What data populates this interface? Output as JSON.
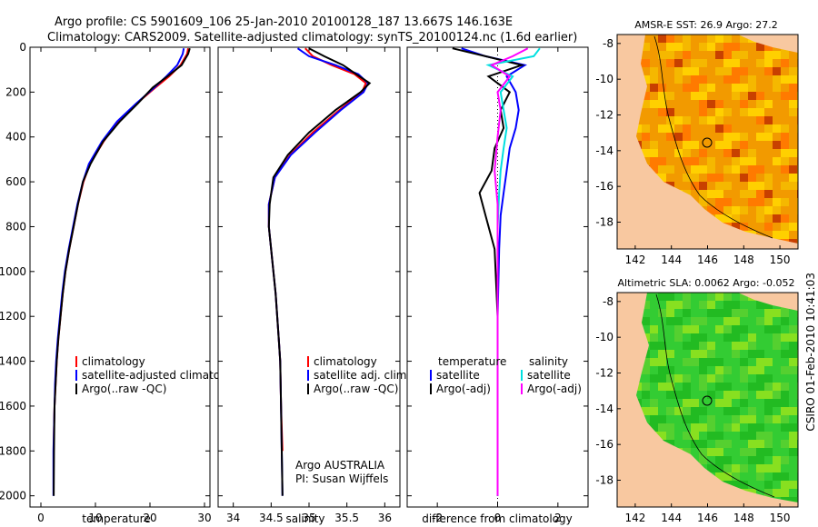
{
  "chart_data": [
    {
      "type": "line",
      "title": "Argo profile: CS 5901609_106 25-Jan-2010 20100128_187 13.667S 146.163E",
      "subtitle": "Climatology: CARS2009. Satellite-adjusted climatology: synTS_20100124.nc (1.6d earlier)",
      "xlabel": "temperature",
      "ylabel": "",
      "xlim": [
        -2,
        31
      ],
      "ylim": [
        2050,
        0
      ],
      "xticks": [
        "0",
        "10",
        "20",
        "30"
      ],
      "yticks": [
        "0",
        "200",
        "400",
        "600",
        "800",
        "1000",
        "1200",
        "1400",
        "1600",
        "1800",
        "2000"
      ],
      "legend": [
        "climatology",
        "satellite-adjusted climatology",
        "Argo(..raw -QC)"
      ],
      "series": [
        {
          "name": "climatology",
          "color": "#ff0000",
          "x": [
            27.0,
            26.8,
            25.6,
            23.5,
            21.0,
            17.6,
            14.2,
            11.5,
            9.0,
            7.8,
            6.8,
            6.0,
            5.2,
            4.5,
            4.0,
            3.6,
            3.2,
            2.9,
            2.7,
            2.5,
            2.4,
            2.35
          ],
          "y": [
            5,
            30,
            80,
            130,
            180,
            250,
            330,
            420,
            520,
            600,
            700,
            800,
            900,
            1000,
            1100,
            1200,
            1300,
            1400,
            1500,
            1600,
            1700,
            1800
          ]
        },
        {
          "name": "satellite-adjusted climatology",
          "color": "#0000ff",
          "x": [
            26.2,
            26.0,
            25.0,
            23.0,
            20.8,
            17.5,
            14.0,
            11.2,
            8.8,
            7.7,
            6.7,
            5.9,
            5.1,
            4.4,
            3.9,
            3.5,
            3.1,
            2.8,
            2.6,
            2.5,
            2.4,
            2.3,
            2.3
          ],
          "y": [
            5,
            30,
            80,
            130,
            180,
            250,
            330,
            420,
            520,
            600,
            700,
            800,
            900,
            1000,
            1100,
            1200,
            1300,
            1400,
            1500,
            1600,
            1700,
            1800,
            2000
          ]
        },
        {
          "name": "Argo(..raw -QC)",
          "color": "#000000",
          "x": [
            27.3,
            27.0,
            25.8,
            23.2,
            20.5,
            17.8,
            14.5,
            11.4,
            9.1,
            7.7,
            6.8,
            6.0,
            5.2,
            4.5,
            4.0,
            3.6,
            3.2,
            2.9,
            2.7,
            2.5,
            2.45,
            2.4,
            2.35
          ],
          "y": [
            5,
            30,
            80,
            130,
            180,
            250,
            330,
            420,
            520,
            600,
            700,
            800,
            900,
            1000,
            1100,
            1200,
            1300,
            1400,
            1500,
            1600,
            1700,
            1800,
            2000
          ]
        }
      ]
    },
    {
      "type": "line",
      "xlabel": "salinity",
      "xlim": [
        33.8,
        36.2
      ],
      "ylim": [
        2050,
        0
      ],
      "xticks": [
        "34",
        "34.5",
        "35",
        "35.5",
        "36"
      ],
      "legend": [
        "climatology",
        "satellite adj. clim.",
        "Argo(..raw -QC)"
      ],
      "annotation": [
        "Argo AUSTRALIA",
        "PI: Susan Wijffels"
      ],
      "series": [
        {
          "name": "climatology",
          "color": "#ff0000",
          "x": [
            34.95,
            35.05,
            35.3,
            35.6,
            35.75,
            35.7,
            35.4,
            35.05,
            34.75,
            34.55,
            34.47,
            34.47,
            34.5,
            34.53,
            34.56,
            34.58,
            34.6,
            34.62,
            34.63,
            34.65
          ],
          "y": [
            5,
            40,
            80,
            120,
            160,
            200,
            280,
            380,
            480,
            580,
            700,
            800,
            900,
            1000,
            1100,
            1200,
            1300,
            1400,
            1600,
            1800
          ]
        },
        {
          "name": "satellite adj. clim.",
          "color": "#0000ff",
          "x": [
            34.85,
            35.0,
            35.35,
            35.65,
            35.78,
            35.72,
            35.42,
            35.08,
            34.76,
            34.55,
            34.47,
            34.47,
            34.5,
            34.53,
            34.56,
            34.58,
            34.6,
            34.62,
            34.63,
            34.64,
            34.65
          ],
          "y": [
            5,
            40,
            80,
            120,
            160,
            200,
            280,
            380,
            480,
            580,
            700,
            800,
            900,
            1000,
            1100,
            1200,
            1300,
            1400,
            1600,
            1800,
            2000
          ]
        },
        {
          "name": "Argo(..raw -QC)",
          "color": "#000000",
          "x": [
            35.0,
            35.2,
            35.45,
            35.62,
            35.8,
            35.68,
            35.35,
            35.0,
            34.72,
            34.53,
            34.48,
            34.47,
            34.5,
            34.53,
            34.56,
            34.58,
            34.6,
            34.62,
            34.63,
            34.64,
            34.65
          ],
          "y": [
            5,
            40,
            80,
            120,
            160,
            200,
            280,
            380,
            480,
            580,
            700,
            800,
            900,
            1000,
            1100,
            1200,
            1300,
            1400,
            1600,
            1800,
            2000
          ]
        }
      ]
    },
    {
      "type": "line",
      "xlabel": "difference from climatology",
      "xlim": [
        -3,
        3
      ],
      "ylim": [
        2050,
        0
      ],
      "xticks": [
        "-2",
        "0",
        "2"
      ],
      "legend_left_title": "temperature",
      "legend_right_title": "salinity",
      "legend_left": [
        "satellite",
        "Argo(-adj)"
      ],
      "legend_right": [
        "satellite",
        "Argo(-adj)"
      ],
      "series": [
        {
          "name": "temperature satellite",
          "color": "#0000ff",
          "x": [
            -1.2,
            -0.4,
            0.9,
            0.3,
            0.6,
            0.7,
            0.6,
            0.4,
            0.3,
            0.2,
            0.1,
            0.05,
            0.0,
            0.0,
            0.0
          ],
          "y": [
            5,
            40,
            80,
            130,
            200,
            280,
            360,
            450,
            550,
            650,
            750,
            900,
            1200,
            1600,
            2000
          ]
        },
        {
          "name": "temperature Argo(-adj)",
          "color": "#000000",
          "x": [
            -1.5,
            -0.4,
            0.8,
            -0.3,
            0.4,
            0.1,
            0.2,
            -0.1,
            -0.2,
            -0.6,
            -0.4,
            -0.1,
            0.0,
            0.0,
            0.0
          ],
          "y": [
            5,
            40,
            80,
            130,
            200,
            280,
            360,
            450,
            550,
            650,
            750,
            900,
            1200,
            1600,
            2000
          ]
        },
        {
          "name": "salinity satellite",
          "color": "#00e0e0",
          "x": [
            1.4,
            1.2,
            -0.3,
            0.5,
            0.1,
            0.2,
            0.3,
            0.2,
            0.1,
            0.05,
            0.0,
            0.0,
            0.0,
            0.0
          ],
          "y": [
            5,
            40,
            80,
            130,
            200,
            280,
            360,
            450,
            550,
            650,
            800,
            1200,
            1600,
            2000
          ]
        },
        {
          "name": "salinity Argo(-adj)",
          "color": "#ff00ff",
          "x": [
            1.0,
            0.5,
            -0.2,
            0.4,
            0.0,
            0.1,
            0.0,
            -0.1,
            0.0,
            0.0,
            0.0,
            0.0
          ],
          "y": [
            5,
            40,
            80,
            130,
            200,
            280,
            400,
            550,
            700,
            900,
            1400,
            2000
          ]
        }
      ]
    },
    {
      "type": "heatmap",
      "title": "AMSR-E SST: 26.9 Argo: 27.2",
      "xticks": [
        "142",
        "144",
        "146",
        "148",
        "150"
      ],
      "yticks": [
        "-8",
        "-10",
        "-12",
        "-14",
        "-16",
        "-18"
      ],
      "xlim": [
        141,
        151
      ],
      "ylim": [
        -19.5,
        -7.5
      ],
      "float_position": {
        "lon": 146.163,
        "lat": -13.667
      }
    },
    {
      "type": "heatmap",
      "title": "Altimetric SLA: 0.0062 Argo: -0.052",
      "xticks": [
        "142",
        "144",
        "146",
        "148",
        "150"
      ],
      "yticks": [
        "-8",
        "-10",
        "-12",
        "-14",
        "-16",
        "-18"
      ],
      "xlim": [
        141,
        151
      ],
      "ylim": [
        -19.5,
        -7.5
      ],
      "float_position": {
        "lon": 146.163,
        "lat": -13.667
      }
    }
  ],
  "footer": {
    "credit": "CSIRO 01-Feb-2010 10:41:03"
  },
  "colors": {
    "land": "#f8c8a0",
    "sst_low": "#e8a000",
    "sst_high": "#ff8800",
    "sla_base": "#33cc33"
  }
}
